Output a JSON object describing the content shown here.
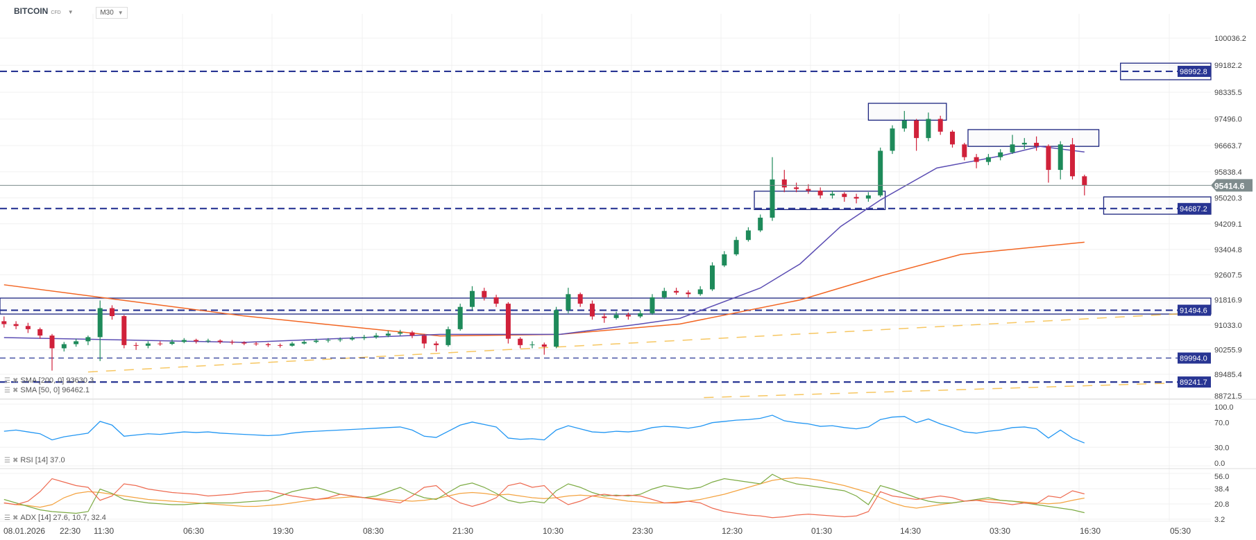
{
  "header": {
    "symbol": "BITCOIN",
    "type": "CFD",
    "timeframe": "M30"
  },
  "legends": {
    "sma200": "SMA [200, 0] 93630.3",
    "sma50": "SMA [50, 0] 96462.1",
    "rsi": "RSI [14] 37.0",
    "adx": "ADX [14] 27.6, 10.7, 32.4"
  },
  "colors": {
    "up": "#1e8a5a",
    "down": "#d0213a",
    "level": "#283593",
    "sma50": "#5b4db3",
    "sma200": "#f26522",
    "trend": "#f5b93a",
    "rsi": "#2196f3",
    "adx": "#f4a340",
    "plus_di": "#7cab43",
    "minus_di": "#ee6a50",
    "price_tag": "#7f8c8d"
  },
  "chart_data": {
    "type": "candlestick",
    "price_axis": {
      "ticks": [
        "100036.2",
        "99182.2",
        "98335.5",
        "97496.0",
        "96663.7",
        "95838.4",
        "95020.3",
        "94209.1",
        "93404.8",
        "92607.5",
        "91816.9",
        "91033.0",
        "90255.9",
        "89485.4",
        "88721.5"
      ],
      "range": [
        88721.5,
        100036.2
      ]
    },
    "time_axis": {
      "labels": [
        "08.01.2026",
        "22:30",
        "11:30",
        "06:30",
        "19:30",
        "08:30",
        "21:30",
        "10:30",
        "23:30",
        "12:30",
        "01:30",
        "14:30",
        "03:30",
        "16:30",
        "05:30"
      ]
    },
    "current_price": "95414.6",
    "levels": [
      {
        "price": 98992.8,
        "label": "98992.8",
        "style": "dashed"
      },
      {
        "price": 94687.2,
        "label": "94687.2",
        "style": "dashed"
      },
      {
        "price": 91494.6,
        "label": "91494.6",
        "style": "dashed"
      },
      {
        "price": 89994.0,
        "label": "89994.0",
        "style": "thin-dashed"
      },
      {
        "price": 89241.7,
        "label": "89241.7",
        "style": "dashed"
      }
    ],
    "zones": [
      {
        "from_bar": 72,
        "to_bar": 78.5,
        "high": 97990,
        "low": 97460
      },
      {
        "from_bar": 80.3,
        "to_bar": 91.2,
        "high": 97165,
        "low": 96638
      },
      {
        "from_bar": 62.5,
        "to_bar": 73.4,
        "high": 95232,
        "low": 94654
      },
      {
        "from_bar": 93,
        "to_bar": null,
        "high": 99250,
        "low": 98730
      },
      {
        "from_bar": 91.6,
        "to_bar": null,
        "high": 95053,
        "low": 94509
      },
      {
        "from_bar": -1,
        "to_bar": null,
        "high": 91876,
        "low": 91375
      }
    ],
    "trendlines": [
      {
        "from": [
          7,
          89557
        ],
        "to": [
          98.3,
          91390
        ]
      },
      {
        "from": [
          58.3,
          88753
        ],
        "to": [
          97,
          89205
        ]
      }
    ],
    "candles": [
      [
        91150,
        91300,
        90950,
        91060
      ],
      [
        91060,
        91150,
        90900,
        91000
      ],
      [
        91000,
        91100,
        90780,
        90900
      ],
      [
        90900,
        90950,
        90600,
        90700
      ],
      [
        90700,
        90750,
        89600,
        90300
      ],
      [
        90300,
        90500,
        90200,
        90430
      ],
      [
        90430,
        90600,
        90350,
        90520
      ],
      [
        90520,
        90700,
        90400,
        90650
      ],
      [
        90650,
        91800,
        89900,
        91560
      ],
      [
        91560,
        91650,
        91200,
        91310
      ],
      [
        91310,
        91350,
        90300,
        90400
      ],
      [
        90400,
        90480,
        90250,
        90380
      ],
      [
        90380,
        90520,
        90300,
        90450
      ],
      [
        90450,
        90520,
        90380,
        90440
      ],
      [
        90440,
        90580,
        90400,
        90500
      ],
      [
        90500,
        90620,
        90460,
        90560
      ],
      [
        90560,
        90600,
        90450,
        90520
      ],
      [
        90520,
        90600,
        90470,
        90540
      ],
      [
        90540,
        90580,
        90440,
        90500
      ],
      [
        90500,
        90560,
        90420,
        90480
      ],
      [
        90480,
        90520,
        90400,
        90450
      ],
      [
        90450,
        90500,
        90380,
        90430
      ],
      [
        90430,
        90470,
        90340,
        90400
      ],
      [
        90400,
        90450,
        90320,
        90380
      ],
      [
        90380,
        90500,
        90350,
        90450
      ],
      [
        90450,
        90560,
        90420,
        90500
      ],
      [
        90500,
        90600,
        90460,
        90540
      ],
      [
        90540,
        90620,
        90480,
        90560
      ],
      [
        90560,
        90640,
        90500,
        90580
      ],
      [
        90580,
        90680,
        90540,
        90620
      ],
      [
        90620,
        90720,
        90560,
        90650
      ],
      [
        90650,
        90780,
        90600,
        90700
      ],
      [
        90700,
        90850,
        90650,
        90760
      ],
      [
        90760,
        90880,
        90700,
        90800
      ],
      [
        90800,
        90850,
        90620,
        90700
      ],
      [
        90700,
        90750,
        90300,
        90450
      ],
      [
        90450,
        90520,
        90200,
        90400
      ],
      [
        90400,
        90980,
        90350,
        90900
      ],
      [
        90900,
        91700,
        90850,
        91600
      ],
      [
        91600,
        92250,
        91500,
        92100
      ],
      [
        92100,
        92200,
        91800,
        91900
      ],
      [
        91900,
        91980,
        91600,
        91700
      ],
      [
        91700,
        91750,
        90450,
        90600
      ],
      [
        90600,
        90650,
        90300,
        90400
      ],
      [
        90400,
        90520,
        90300,
        90420
      ],
      [
        90420,
        90480,
        90100,
        90350
      ],
      [
        90350,
        91600,
        90300,
        91500
      ],
      [
        91500,
        92200,
        91400,
        92000
      ],
      [
        92000,
        92050,
        91600,
        91700
      ],
      [
        91700,
        91800,
        91200,
        91300
      ],
      [
        91300,
        91400,
        91100,
        91250
      ],
      [
        91250,
        91450,
        91200,
        91350
      ],
      [
        91350,
        91420,
        91200,
        91300
      ],
      [
        91300,
        91500,
        91250,
        91400
      ],
      [
        91400,
        92000,
        91350,
        91900
      ],
      [
        91900,
        92200,
        91850,
        92100
      ],
      [
        92100,
        92200,
        91980,
        92050
      ],
      [
        92050,
        92120,
        91900,
        92000
      ],
      [
        92000,
        92250,
        91950,
        92150
      ],
      [
        92150,
        93000,
        92100,
        92900
      ],
      [
        92900,
        93350,
        92850,
        93250
      ],
      [
        93250,
        93800,
        93200,
        93700
      ],
      [
        93700,
        94100,
        93650,
        94000
      ],
      [
        94000,
        94500,
        93950,
        94400
      ],
      [
        94400,
        96300,
        94300,
        95600
      ],
      [
        95600,
        95900,
        95200,
        95350
      ],
      [
        95350,
        95500,
        95200,
        95300
      ],
      [
        95300,
        95450,
        95150,
        95250
      ],
      [
        95250,
        95350,
        95000,
        95100
      ],
      [
        95100,
        95250,
        95000,
        95150
      ],
      [
        95150,
        95200,
        94900,
        95050
      ],
      [
        95050,
        95150,
        94850,
        95000
      ],
      [
        95000,
        95200,
        94900,
        95100
      ],
      [
        95100,
        96600,
        95050,
        96500
      ],
      [
        96500,
        97300,
        96400,
        97200
      ],
      [
        97200,
        97750,
        97100,
        97450
      ],
      [
        97450,
        97500,
        96500,
        96900
      ],
      [
        96900,
        97700,
        96800,
        97500
      ],
      [
        97500,
        97600,
        97000,
        97100
      ],
      [
        97100,
        97150,
        96600,
        96700
      ],
      [
        96700,
        96750,
        96200,
        96300
      ],
      [
        96300,
        96400,
        95950,
        96150
      ],
      [
        96150,
        96400,
        96050,
        96300
      ],
      [
        96300,
        96550,
        96200,
        96450
      ],
      [
        96450,
        97000,
        96400,
        96700
      ],
      [
        96700,
        96900,
        96550,
        96750
      ],
      [
        96750,
        96950,
        96500,
        96650
      ],
      [
        96650,
        96700,
        95500,
        95900
      ],
      [
        95900,
        96800,
        95600,
        96700
      ],
      [
        96700,
        96900,
        95600,
        95700
      ],
      [
        95700,
        95750,
        95100,
        95414.6
      ]
    ],
    "sma200": [
      [
        0,
        92294
      ],
      [
        20,
        91315
      ],
      [
        36.3,
        90687
      ],
      [
        46.3,
        90737
      ],
      [
        56.3,
        91063
      ],
      [
        66.3,
        91817
      ],
      [
        73,
        92570
      ],
      [
        79.7,
        93248
      ],
      [
        90,
        93630.3
      ]
    ],
    "sma50": [
      [
        0,
        90637
      ],
      [
        20,
        90486
      ],
      [
        36.3,
        90737
      ],
      [
        46.3,
        90737
      ],
      [
        53,
        91063
      ],
      [
        56.3,
        91240
      ],
      [
        63,
        92193
      ],
      [
        66.3,
        92946
      ],
      [
        69.7,
        94127
      ],
      [
        73,
        94956
      ],
      [
        77.7,
        95960
      ],
      [
        83,
        96337
      ],
      [
        86.3,
        96638
      ],
      [
        90,
        96462.1
      ]
    ],
    "rsi": {
      "ticks": [
        "100.0",
        "70.0",
        "30.0",
        "0.0"
      ],
      "values": [
        56,
        58,
        55,
        52,
        42,
        47,
        50,
        53,
        72,
        66,
        48,
        50,
        52,
        51,
        53,
        55,
        54,
        55,
        53,
        52,
        51,
        50,
        49,
        50,
        53,
        55,
        56,
        57,
        58,
        59,
        60,
        61,
        62,
        63,
        58,
        48,
        46,
        56,
        66,
        71,
        67,
        63,
        45,
        43,
        44,
        42,
        58,
        65,
        60,
        55,
        54,
        56,
        55,
        57,
        62,
        64,
        63,
        61,
        64,
        70,
        72,
        74,
        75,
        77,
        82,
        73,
        70,
        68,
        64,
        65,
        62,
        60,
        63,
        75,
        79,
        80,
        70,
        76,
        68,
        62,
        55,
        53,
        56,
        58,
        62,
        63,
        60,
        45,
        58,
        45,
        37
      ]
    },
    "adx": {
      "ticks": [
        "56.0",
        "38.4",
        "20.8",
        "3.2"
      ],
      "adx": [
        22,
        20,
        19,
        17,
        20,
        28,
        33,
        35,
        34,
        32,
        30,
        28,
        26,
        25,
        24,
        23,
        22,
        21,
        20,
        19,
        18,
        18,
        19,
        20,
        22,
        24,
        26,
        27,
        28,
        29,
        28,
        27,
        26,
        25,
        24,
        25,
        27,
        30,
        33,
        34,
        33,
        31,
        32,
        30,
        28,
        27,
        28,
        30,
        31,
        30,
        28,
        26,
        24,
        23,
        22,
        22,
        23,
        24,
        26,
        29,
        32,
        36,
        40,
        44,
        48,
        50,
        51,
        50,
        48,
        45,
        42,
        38,
        34,
        28,
        22,
        18,
        16,
        18,
        20,
        22,
        24,
        25,
        26,
        25,
        24,
        23,
        22,
        21,
        22,
        25,
        27.6
      ],
      "plus_di": [
        26,
        22,
        18,
        14,
        12,
        11,
        10,
        12,
        38,
        33,
        26,
        24,
        22,
        21,
        20,
        20,
        21,
        22,
        22,
        22,
        23,
        24,
        25,
        30,
        35,
        38,
        40,
        36,
        32,
        30,
        28,
        30,
        35,
        40,
        33,
        28,
        26,
        34,
        42,
        45,
        40,
        33,
        25,
        22,
        24,
        22,
        36,
        44,
        40,
        34,
        30,
        31,
        30,
        32,
        38,
        42,
        40,
        38,
        40,
        46,
        50,
        48,
        46,
        44,
        55,
        48,
        44,
        42,
        40,
        38,
        36,
        30,
        20,
        42,
        38,
        33,
        28,
        24,
        22,
        22,
        24,
        26,
        28,
        25,
        24,
        22,
        20,
        18,
        16,
        14,
        10.7
      ],
      "minus_di": [
        22,
        20,
        24,
        35,
        50,
        46,
        42,
        40,
        25,
        30,
        44,
        42,
        38,
        36,
        34,
        33,
        32,
        30,
        31,
        32,
        34,
        35,
        36,
        33,
        30,
        28,
        26,
        28,
        32,
        30,
        28,
        26,
        24,
        22,
        30,
        40,
        42,
        30,
        22,
        18,
        22,
        28,
        42,
        45,
        40,
        42,
        28,
        20,
        24,
        30,
        32,
        30,
        31,
        30,
        26,
        22,
        22,
        24,
        22,
        16,
        12,
        10,
        8,
        7,
        5,
        6,
        8,
        9,
        8,
        7,
        6,
        7,
        12,
        35,
        30,
        28,
        26,
        28,
        30,
        28,
        24,
        25,
        23,
        22,
        20,
        22,
        21,
        30,
        28,
        36,
        32.4
      ]
    }
  }
}
